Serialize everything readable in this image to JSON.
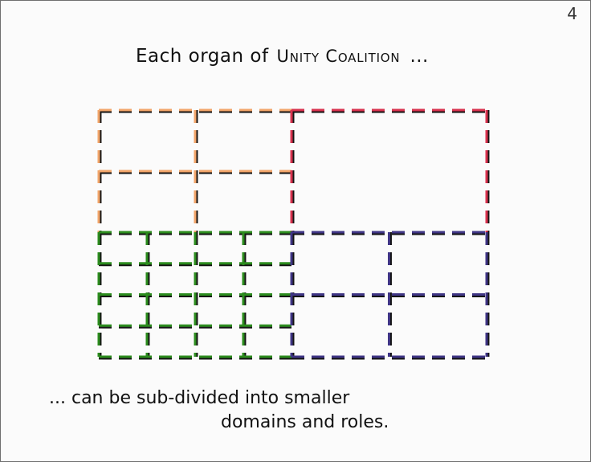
{
  "page": {
    "number": "4"
  },
  "heading": {
    "prefix": "Each organ of",
    "organization": "Unity Coalition",
    "suffix": "..."
  },
  "caption": {
    "line1": "... can be sub-divided into smaller",
    "line2": "domains and roles."
  },
  "colors": {
    "orange": "#f2a56a",
    "red": "#d8324e",
    "green": "#2c8c1e",
    "purple": "#3f3585",
    "black": "#141414"
  },
  "quadrants": [
    {
      "name": "top-left-organ",
      "color": "orange",
      "columns": 2,
      "rows": 2
    },
    {
      "name": "top-right-organ",
      "color": "red",
      "columns": 1,
      "rows": 1
    },
    {
      "name": "bottom-left-organ",
      "color": "green",
      "columns": 4,
      "rows": 4
    },
    {
      "name": "bottom-right-organ",
      "color": "purple",
      "columns": 2,
      "rows": 2
    }
  ]
}
